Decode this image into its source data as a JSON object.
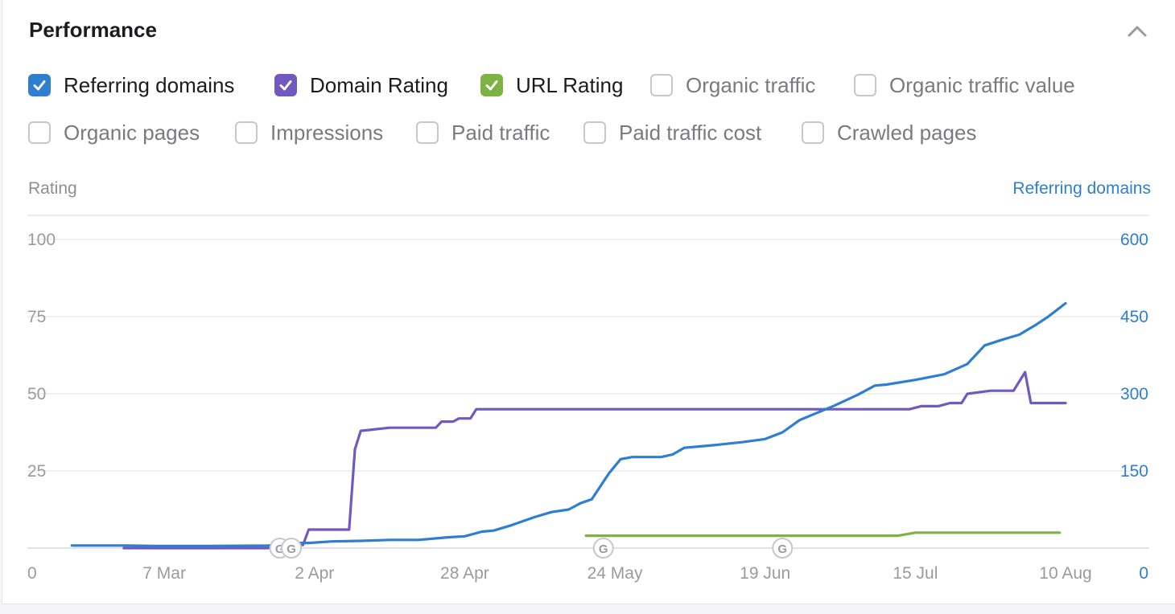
{
  "panel": {
    "title": "Performance"
  },
  "metrics": [
    {
      "label": "Referring domains",
      "checked": true,
      "color": "#2f7fd0"
    },
    {
      "label": "Domain Rating",
      "checked": true,
      "color": "#7159c1"
    },
    {
      "label": "URL Rating",
      "checked": true,
      "color": "#7cb342"
    },
    {
      "label": "Organic traffic",
      "checked": false
    },
    {
      "label": "Organic traffic value",
      "checked": false
    },
    {
      "label": "Organic pages",
      "checked": false
    },
    {
      "label": "Impressions",
      "checked": false
    },
    {
      "label": "Paid traffic",
      "checked": false
    },
    {
      "label": "Paid traffic cost",
      "checked": false
    },
    {
      "label": "Crawled pages",
      "checked": false
    }
  ],
  "chart_data": {
    "type": "line",
    "left_axis": {
      "title": "Rating",
      "range": [
        0,
        100
      ],
      "ticks": [
        "0",
        "25",
        "50",
        "75",
        "100"
      ]
    },
    "right_axis": {
      "title": "Referring domains",
      "range": [
        0,
        600
      ],
      "ticks": [
        "0",
        "150",
        "300",
        "450",
        "600"
      ],
      "color": "#2f7fd0"
    },
    "x_axis": {
      "range": [
        "2023-02-12",
        "2023-08-10"
      ],
      "ticks": [
        {
          "date": "2023-03-07",
          "label": "7 Mar"
        },
        {
          "date": "2023-04-02",
          "label": "2 Apr"
        },
        {
          "date": "2023-04-28",
          "label": "28 Apr"
        },
        {
          "date": "2023-05-24",
          "label": "24 May"
        },
        {
          "date": "2023-06-19",
          "label": "19 Jun"
        },
        {
          "date": "2023-07-15",
          "label": "15 Jul"
        },
        {
          "date": "2023-08-10",
          "label": "10 Aug"
        }
      ]
    },
    "grid": true,
    "annotations": [
      {
        "date": "2023-03-27",
        "icon": "google-update-icon",
        "label": "G"
      },
      {
        "date": "2023-03-29",
        "icon": "google-update-icon",
        "label": "G"
      },
      {
        "date": "2023-05-22",
        "icon": "google-update-icon",
        "label": "G"
      },
      {
        "date": "2023-06-22",
        "icon": "google-update-icon",
        "label": "G"
      }
    ],
    "series": [
      {
        "name": "Referring domains",
        "axis": "right",
        "color": "#2f7fd0",
        "points": [
          [
            "2023-02-19",
            5
          ],
          [
            "2023-03-01",
            5
          ],
          [
            "2023-03-05",
            4
          ],
          [
            "2023-03-15",
            4
          ],
          [
            "2023-03-25",
            5
          ],
          [
            "2023-03-29",
            10
          ],
          [
            "2023-04-01",
            10
          ],
          [
            "2023-04-05",
            13
          ],
          [
            "2023-04-10",
            14
          ],
          [
            "2023-04-15",
            16
          ],
          [
            "2023-04-20",
            16
          ],
          [
            "2023-04-25",
            21
          ],
          [
            "2023-04-28",
            23
          ],
          [
            "2023-05-01",
            32
          ],
          [
            "2023-05-03",
            34
          ],
          [
            "2023-05-06",
            44
          ],
          [
            "2023-05-10",
            60
          ],
          [
            "2023-05-13",
            70
          ],
          [
            "2023-05-16",
            75
          ],
          [
            "2023-05-18",
            87
          ],
          [
            "2023-05-20",
            95
          ],
          [
            "2023-05-23",
            146
          ],
          [
            "2023-05-25",
            173
          ],
          [
            "2023-05-27",
            177
          ],
          [
            "2023-06-01",
            177
          ],
          [
            "2023-06-03",
            182
          ],
          [
            "2023-06-05",
            195
          ],
          [
            "2023-06-10",
            200
          ],
          [
            "2023-06-15",
            206
          ],
          [
            "2023-06-19",
            212
          ],
          [
            "2023-06-22",
            225
          ],
          [
            "2023-06-25",
            249
          ],
          [
            "2023-06-28",
            263
          ],
          [
            "2023-07-01",
            277
          ],
          [
            "2023-07-05",
            298
          ],
          [
            "2023-07-08",
            316
          ],
          [
            "2023-07-10",
            318
          ],
          [
            "2023-07-15",
            327
          ],
          [
            "2023-07-20",
            338
          ],
          [
            "2023-07-24",
            358
          ],
          [
            "2023-07-27",
            394
          ],
          [
            "2023-07-30",
            405
          ],
          [
            "2023-08-02",
            415
          ],
          [
            "2023-08-05",
            435
          ],
          [
            "2023-08-07",
            450
          ],
          [
            "2023-08-10",
            476
          ]
        ]
      },
      {
        "name": "Domain Rating",
        "axis": "left",
        "color": "#7159c1",
        "points": [
          [
            "2023-02-28",
            0
          ],
          [
            "2023-03-25",
            0
          ],
          [
            "2023-03-27",
            1
          ],
          [
            "2023-03-31",
            1
          ],
          [
            "2023-04-01",
            6
          ],
          [
            "2023-04-08",
            6
          ],
          [
            "2023-04-09",
            32
          ],
          [
            "2023-04-10",
            38
          ],
          [
            "2023-04-15",
            39
          ],
          [
            "2023-04-23",
            39
          ],
          [
            "2023-04-24",
            41
          ],
          [
            "2023-04-26",
            41
          ],
          [
            "2023-04-27",
            42
          ],
          [
            "2023-04-29",
            42
          ],
          [
            "2023-04-30",
            45
          ],
          [
            "2023-07-14",
            45
          ],
          [
            "2023-07-16",
            46
          ],
          [
            "2023-07-19",
            46
          ],
          [
            "2023-07-21",
            47
          ],
          [
            "2023-07-23",
            47
          ],
          [
            "2023-07-24",
            50
          ],
          [
            "2023-07-28",
            51
          ],
          [
            "2023-08-01",
            51
          ],
          [
            "2023-08-03",
            57
          ],
          [
            "2023-08-04",
            47
          ],
          [
            "2023-08-10",
            47
          ]
        ]
      },
      {
        "name": "URL Rating",
        "axis": "left",
        "color": "#7cb342",
        "points": [
          [
            "2023-05-19",
            4
          ],
          [
            "2023-07-12",
            4
          ],
          [
            "2023-07-15",
            5
          ],
          [
            "2023-08-09",
            5
          ]
        ]
      }
    ]
  }
}
